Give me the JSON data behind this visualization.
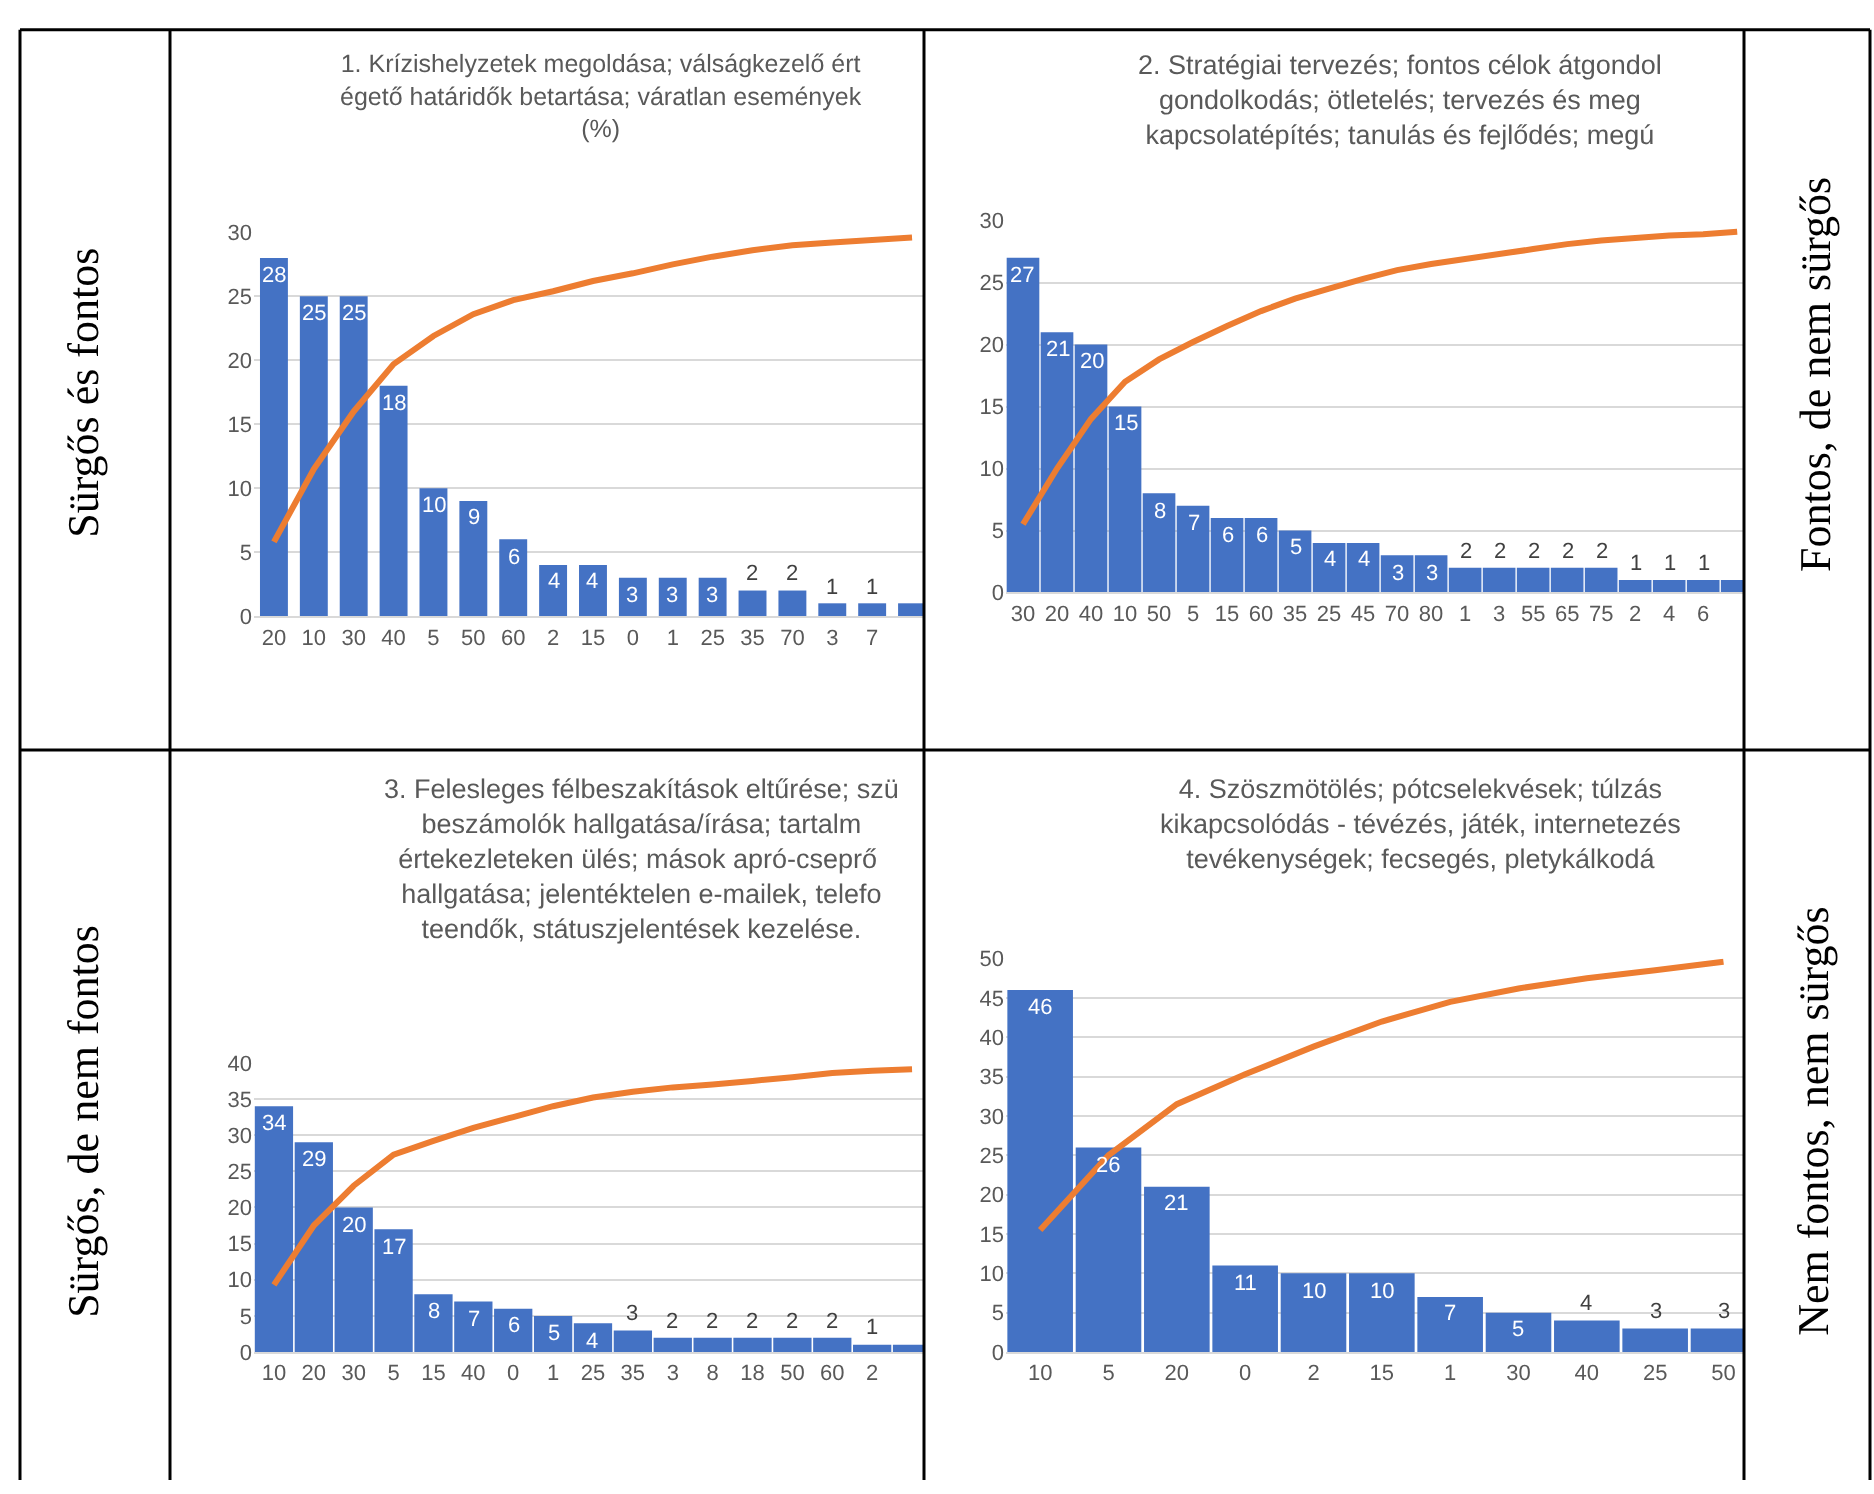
{
  "chart_data": [
    {
      "type": "bar",
      "title": "1. Krízishelyzetek megoldása; válságkezelő ért\négető határidők betartása; váratlan események\n(%)",
      "annotations": [
        "Sürgős és fontos"
      ],
      "categories": [
        "20",
        "10",
        "30",
        "40",
        "5",
        "50",
        "60",
        "2",
        "15",
        "0",
        "1",
        "25",
        "35",
        "70",
        "3",
        "7",
        null
      ],
      "series": [
        {
          "color": "#4472c4",
          "values": [
            28,
            25,
            25,
            18,
            10,
            9,
            6,
            4,
            4,
            3,
            3,
            3,
            2,
            2,
            1,
            1,
            1
          ],
          "value_labels": [
            "28",
            "25",
            "25",
            "18",
            "10",
            "9",
            "6",
            "4",
            "4",
            "3",
            "3",
            "3",
            "2",
            "2",
            "1",
            "1",
            null
          ]
        },
        {
          "type": "line",
          "color": "#ed7d31",
          "values": [
            5.8,
            11.5,
            16,
            19.7,
            21.9,
            23.6,
            24.7,
            25.4,
            26.2,
            26.8,
            27.5,
            28.1,
            28.6,
            29.0,
            29.2,
            29.4,
            29.6
          ]
        }
      ],
      "ylim": [
        0,
        30
      ],
      "yticks": [
        0,
        5,
        10,
        15,
        20,
        25,
        30
      ],
      "grid": "y",
      "marker": "none"
    },
    {
      "type": "bar",
      "title": "2. Stratégiai tervezés; fontos célok átgondol\ngondolkodás; ötletelés; tervezés és meg\nkapcsolatépítés; tanulás és fejlődés; megú",
      "annotations": [
        "Fontos, de nem sürgős"
      ],
      "categories": [
        "30",
        "20",
        "40",
        "10",
        "50",
        "5",
        "15",
        "60",
        "35",
        "25",
        "45",
        "70",
        "80",
        "1",
        "3",
        "55",
        "65",
        "75",
        "2",
        "4",
        "6",
        null
      ],
      "series": [
        {
          "color": "#4472c4",
          "values": [
            27,
            21,
            20,
            15,
            8,
            7,
            6,
            6,
            5,
            4,
            4,
            3,
            3,
            2,
            2,
            2,
            2,
            2,
            1,
            1,
            1,
            1
          ],
          "value_labels": [
            "27",
            "21",
            "20",
            "15",
            "8",
            "7",
            "6",
            "6",
            "5",
            "4",
            "4",
            "3",
            "3",
            "2",
            "2",
            "2",
            "2",
            "2",
            "1",
            "1",
            "1",
            null
          ]
        },
        {
          "type": "line",
          "color": "#ed7d31",
          "values": [
            5.5,
            10,
            14,
            17,
            18.8,
            20.2,
            21.5,
            22.7,
            23.7,
            24.5,
            25.3,
            26,
            26.5,
            26.9,
            27.3,
            27.7,
            28.1,
            28.4,
            28.6,
            28.8,
            28.9,
            29.1
          ]
        }
      ],
      "ylim": [
        0,
        30
      ],
      "yticks": [
        0,
        5,
        10,
        15,
        20,
        25,
        30
      ],
      "grid": "y",
      "marker": "none"
    },
    {
      "type": "bar",
      "title": "3. Felesleges félbeszakítások eltűrése; szü\nbeszámolók hallgatása/írása; tartalm\nértekezleteken ülés; mások apró-cseprő \nhallgatása; jelentéktelen e-mailek, telefo\nteendők, státuszjelentések kezelése.",
      "annotations": [
        "Sürgős, de nem fontos"
      ],
      "categories": [
        "10",
        "20",
        "30",
        "5",
        "15",
        "40",
        "0",
        "1",
        "25",
        "35",
        "3",
        "8",
        "18",
        "50",
        "60",
        "2",
        null
      ],
      "series": [
        {
          "color": "#4472c4",
          "values": [
            34,
            29,
            20,
            17,
            8,
            7,
            6,
            5,
            4,
            3,
            2,
            2,
            2,
            2,
            2,
            1,
            1
          ],
          "value_labels": [
            "34",
            "29",
            "20",
            "17",
            "8",
            "7",
            "6",
            "5",
            "4",
            "3",
            "2",
            "2",
            "2",
            "2",
            "2",
            "1",
            null
          ]
        },
        {
          "type": "line",
          "color": "#ed7d31",
          "values": [
            9.3,
            17.5,
            23,
            27.3,
            29.2,
            31,
            32.5,
            34,
            35.2,
            36,
            36.6,
            37,
            37.5,
            38,
            38.6,
            38.9,
            39.1
          ]
        }
      ],
      "ylim": [
        0,
        40
      ],
      "yticks": [
        0,
        5,
        10,
        15,
        20,
        25,
        30,
        35,
        40
      ],
      "grid": "y",
      "marker": "none"
    },
    {
      "type": "bar",
      "title": "4. Szöszmötölés; pótcselekvések; túlzás\nkikapcsolódás - tévézés, játék, internetezés\ntevékenységek; fecsegés, pletykálkodá",
      "annotations": [
        "Nem fontos, nem sürgős"
      ],
      "categories": [
        "10",
        "5",
        "20",
        "0",
        "2",
        "15",
        "1",
        "30",
        "40",
        "25",
        "50"
      ],
      "series": [
        {
          "color": "#4472c4",
          "values": [
            46,
            26,
            21,
            11,
            10,
            10,
            7,
            5,
            4,
            3,
            3
          ],
          "value_labels": [
            "46",
            "26",
            "21",
            "11",
            "10",
            "10",
            "7",
            "5",
            "4",
            "3",
            "3"
          ]
        },
        {
          "type": "line",
          "color": "#ed7d31",
          "values": [
            15.5,
            25,
            31.5,
            35.3,
            38.8,
            42,
            44.5,
            46.2,
            47.5,
            48.5,
            49.6
          ]
        }
      ],
      "ylim": [
        0,
        50
      ],
      "yticks": [
        0,
        5,
        10,
        15,
        20,
        25,
        30,
        35,
        40,
        45,
        50
      ],
      "grid": "y",
      "marker": "none"
    }
  ]
}
